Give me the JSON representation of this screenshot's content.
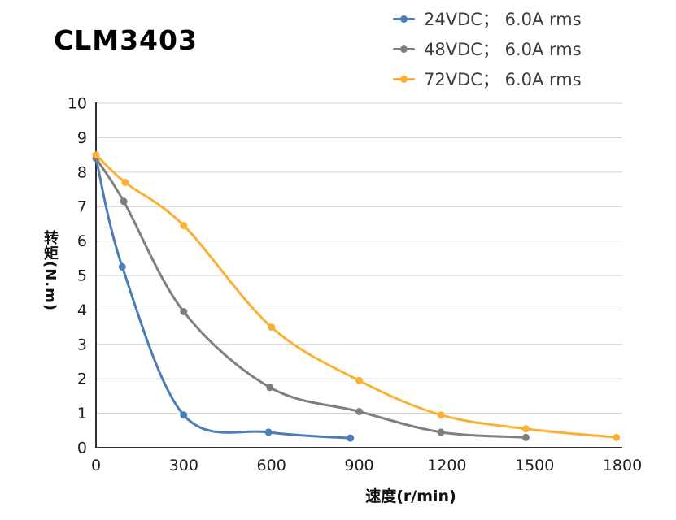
{
  "title": "CLM3403",
  "chart_data": {
    "type": "line",
    "title": "CLM3403",
    "xlabel": "速度(r/min)",
    "ylabel": "转矩(N.m)",
    "xlim": [
      0,
      1800
    ],
    "ylim": [
      0,
      10
    ],
    "x_ticks": [
      0,
      300,
      600,
      900,
      1200,
      1500,
      1800
    ],
    "y_ticks": [
      0,
      1,
      2,
      3,
      4,
      5,
      6,
      7,
      8,
      9,
      10
    ],
    "grid": "horizontal-only",
    "legend_position": "top-right",
    "axis_color": "#2f2f2f",
    "grid_color": "#cfcfcf",
    "series": [
      {
        "name": "24VDC； 6.0A rms",
        "color": "#4a7db8",
        "points": [
          [
            0,
            8.4
          ],
          [
            90,
            5.25
          ],
          [
            300,
            0.95
          ],
          [
            590,
            0.45
          ],
          [
            870,
            0.28
          ]
        ]
      },
      {
        "name": "48VDC； 6.0A rms",
        "color": "#7f7f7f",
        "points": [
          [
            0,
            8.4
          ],
          [
            95,
            7.15
          ],
          [
            300,
            3.95
          ],
          [
            595,
            1.75
          ],
          [
            900,
            1.05
          ],
          [
            1180,
            0.45
          ],
          [
            1470,
            0.3
          ]
        ]
      },
      {
        "name": "72VDC； 6.0A rms",
        "color": "#fbb034",
        "points": [
          [
            0,
            8.5
          ],
          [
            100,
            7.7
          ],
          [
            300,
            6.45
          ],
          [
            600,
            3.5
          ],
          [
            900,
            1.95
          ],
          [
            1180,
            0.95
          ],
          [
            1470,
            0.55
          ],
          [
            1780,
            0.3
          ]
        ]
      }
    ]
  }
}
